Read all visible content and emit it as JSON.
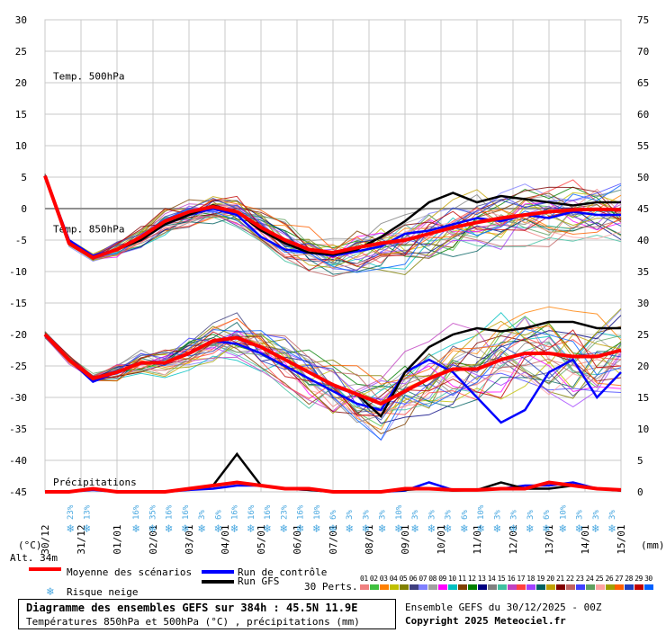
{
  "chart_data": {
    "type": "line",
    "left_axis_label": "(°C)",
    "right_axis_label": "(mm)",
    "left_ticks": [
      30,
      25,
      20,
      15,
      10,
      5,
      0,
      -5,
      -10,
      -15,
      -20,
      -25,
      -30,
      -35,
      -40,
      -45
    ],
    "right_ticks": [
      75,
      70,
      65,
      60,
      55,
      50,
      45,
      40,
      35,
      30,
      25,
      20,
      15,
      10,
      5,
      0
    ],
    "ylim_left": [
      -45,
      30
    ],
    "ylim_right": [
      0,
      75
    ],
    "x_labels": [
      "30/12",
      "31/12",
      "01/01",
      "02/01",
      "03/01",
      "04/01",
      "05/01",
      "06/01",
      "07/01",
      "08/01",
      "09/01",
      "10/01",
      "11/01",
      "12/01",
      "13/01",
      "14/01",
      "15/01"
    ],
    "panel_labels": [
      "Temp. 850hPa",
      "Temp. 500hPa",
      "Précipitations"
    ],
    "altitude_label": "Alt. 34m",
    "series": [
      {
        "name": "Moyenne des scénarios",
        "color": "#ff0000",
        "t850": [
          5.2,
          -5.5,
          -7.8,
          -6.5,
          -4.5,
          -2,
          -0.5,
          0.3,
          -0.5,
          -3,
          -5,
          -6.5,
          -7,
          -6.2,
          -5.5,
          -5,
          -4,
          -3,
          -2.2,
          -1.5,
          -1,
          -0.5,
          -0.2,
          -0.1,
          -0.2
        ],
        "t500": [
          -20,
          -24,
          -27,
          -26,
          -24.5,
          -24.5,
          -23,
          -21,
          -20.5,
          -22,
          -24,
          -26,
          -28,
          -29.5,
          -31,
          -29,
          -27,
          -25.5,
          -25.5,
          -24,
          -23,
          -23,
          -23.5,
          -23.5,
          -22.5
        ],
        "precip": [
          0,
          0,
          0.5,
          0,
          0,
          0,
          0.5,
          1,
          1.5,
          1,
          0.5,
          0.5,
          0,
          0,
          0,
          0.5,
          0.5,
          0.3,
          0.3,
          0.5,
          0.5,
          1.5,
          1,
          0.5,
          0.3
        ]
      },
      {
        "name": "Run de contrôle",
        "color": "#0000ff",
        "t850": [
          5.2,
          -5,
          -7.5,
          -6.5,
          -5,
          -2.5,
          -1,
          0,
          -1,
          -4.5,
          -6.5,
          -7,
          -7.5,
          -6.8,
          -6,
          -4,
          -3.5,
          -2.5,
          -1.5,
          -2,
          -1,
          -1.5,
          -0.5,
          -1,
          -1
        ],
        "t500": [
          -20,
          -24,
          -27.5,
          -26,
          -24.5,
          -24.5,
          -23,
          -21,
          -21.5,
          -23,
          -25,
          -27,
          -29,
          -31,
          -32,
          -26,
          -24,
          -26,
          -30,
          -34,
          -32,
          -26,
          -24,
          -30,
          -26
        ],
        "precip": [
          0,
          0,
          0.3,
          0,
          0,
          0,
          0.3,
          0.5,
          1,
          1,
          0.5,
          0.3,
          0,
          0,
          0,
          0.2,
          1.5,
          0.3,
          0.3,
          0.5,
          1,
          1,
          1.5,
          0.5,
          0.2
        ]
      },
      {
        "name": "Run GFS",
        "color": "#000000",
        "t850": [
          5.2,
          -5.5,
          -7.8,
          -6.5,
          -5,
          -2.5,
          -1,
          0.5,
          -0.5,
          -3.5,
          -5.5,
          -7,
          -7.3,
          -6.5,
          -4.5,
          -2,
          1,
          2.5,
          1,
          2,
          1.5,
          1,
          0.5,
          1,
          1
        ],
        "t500": [
          -20,
          -24,
          -27,
          -26,
          -24.5,
          -24.5,
          -23,
          -21,
          -20.5,
          -22,
          -24,
          -26,
          -28,
          -29.5,
          -33,
          -26,
          -22,
          -20,
          -19,
          -19.5,
          -19,
          -18,
          -18,
          -19,
          -19
        ],
        "precip": [
          0,
          0,
          0.5,
          0,
          0,
          0,
          0.5,
          1,
          6,
          1,
          0.5,
          0.3,
          0,
          0,
          0,
          0.3,
          0.5,
          0.2,
          0.3,
          1.5,
          0.5,
          0.5,
          1,
          0.5,
          0.2
        ]
      }
    ],
    "snow_risk": [
      "",
      "23%",
      "13%",
      "",
      "",
      "16%",
      "35%",
      "16%",
      "16%",
      "3%",
      "6%",
      "16%",
      "16%",
      "16%",
      "23%",
      "16%",
      "10%",
      "6%",
      "3%",
      "3%",
      "3%",
      "10%",
      "3%",
      "3%",
      "3%",
      "6%",
      "10%",
      "3%",
      "3%",
      "3%",
      "6%",
      "10%",
      "3%",
      "3%",
      "3%"
    ],
    "snow_risk_label": "Risque neige",
    "perturbations_label": "30 Perts.",
    "perturbation_ids": [
      "01",
      "02",
      "03",
      "04",
      "05",
      "06",
      "07",
      "08",
      "09",
      "10",
      "11",
      "12",
      "13",
      "14",
      "15",
      "16",
      "17",
      "18",
      "19",
      "20",
      "21",
      "22",
      "23",
      "24",
      "25",
      "26",
      "27",
      "28",
      "29",
      "30"
    ],
    "perturbation_colors": [
      "#f08080",
      "#40c040",
      "#ff8000",
      "#c0c000",
      "#808000",
      "#404080",
      "#8080ff",
      "#a0a0a0",
      "#ff00ff",
      "#00c0c0",
      "#804000",
      "#008000",
      "#000080",
      "#808080",
      "#40c0a0",
      "#c040c0",
      "#ff4040",
      "#a040ff",
      "#006060",
      "#c0a000",
      "#800000",
      "#c06060",
      "#4040ff",
      "#60a060",
      "#ffa0a0",
      "#a0a000",
      "#ff6000",
      "#2040c0",
      "#c00000",
      "#0060ff"
    ]
  },
  "footer": {
    "title": "Diagramme des ensembles GEFS sur 384h : 45.5N 11.9E",
    "subtitle": "Températures 850hPa et 500hPa (°C) , précipitations (mm)",
    "run": "Ensemble GEFS du 30/12/2025 - 00Z",
    "copyright": "Copyright 2025 Meteociel.fr"
  }
}
